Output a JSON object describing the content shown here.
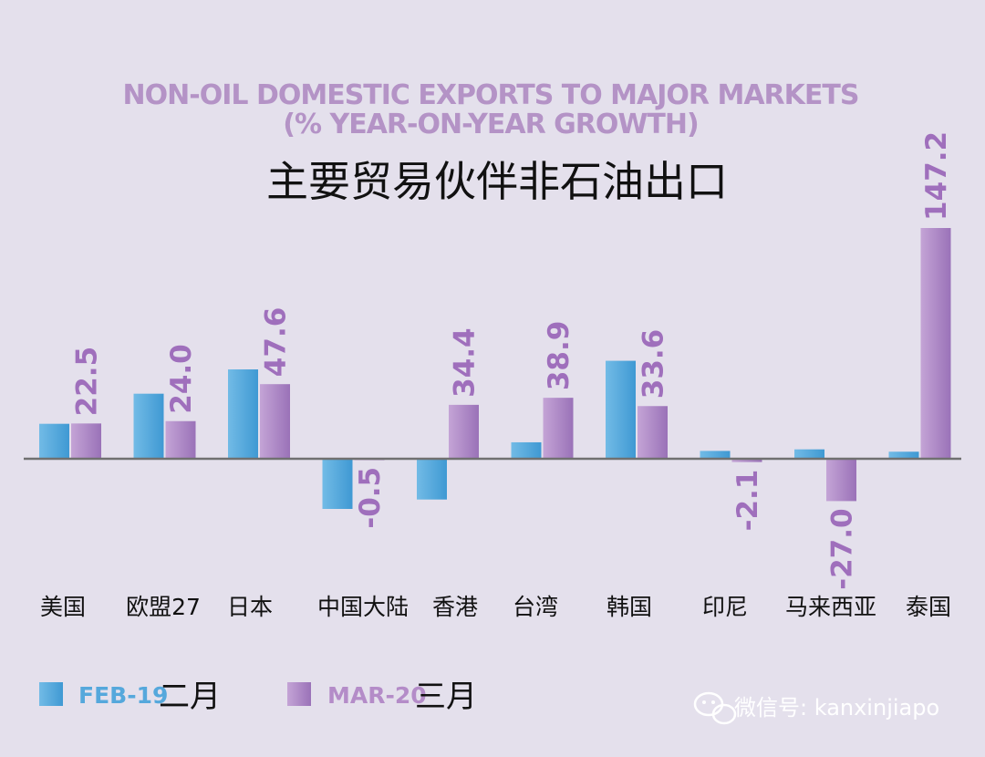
{
  "chart_data": {
    "type": "bar",
    "title": "NON-OIL DOMESTIC EXPORTS TO MAJOR MARKETS",
    "subtitle": "(% YEAR-ON-YEAR GROWTH)",
    "title_cn": "主要贸易伙伴非石油出口",
    "categories": [
      "美国",
      "欧盟27",
      "日本",
      "中国大陆",
      "香港",
      "台湾",
      "韩国",
      "印尼",
      "马来西亚",
      "泰国"
    ],
    "series": [
      {
        "name": "FEB-19",
        "name_cn": "二月",
        "color": "#4aa3d9",
        "values": [
          22.3,
          41.5,
          57.0,
          -32.0,
          -26.0,
          10.5,
          62.5,
          5.0,
          6.0,
          4.5
        ],
        "labels_shown": false
      },
      {
        "name": "MAR-20",
        "name_cn": "三月",
        "color": "#a882c1",
        "values": [
          22.5,
          24.0,
          47.6,
          -0.5,
          34.4,
          38.9,
          33.6,
          -2.1,
          -27.0,
          147.2
        ],
        "labels_shown": true
      }
    ],
    "ylim": [
      -80,
      160
    ],
    "grid": false,
    "legend_position": "bottom-left"
  },
  "watermark": {
    "text": "微信号: kanxinjiapo",
    "icon": "wechat-icon"
  }
}
